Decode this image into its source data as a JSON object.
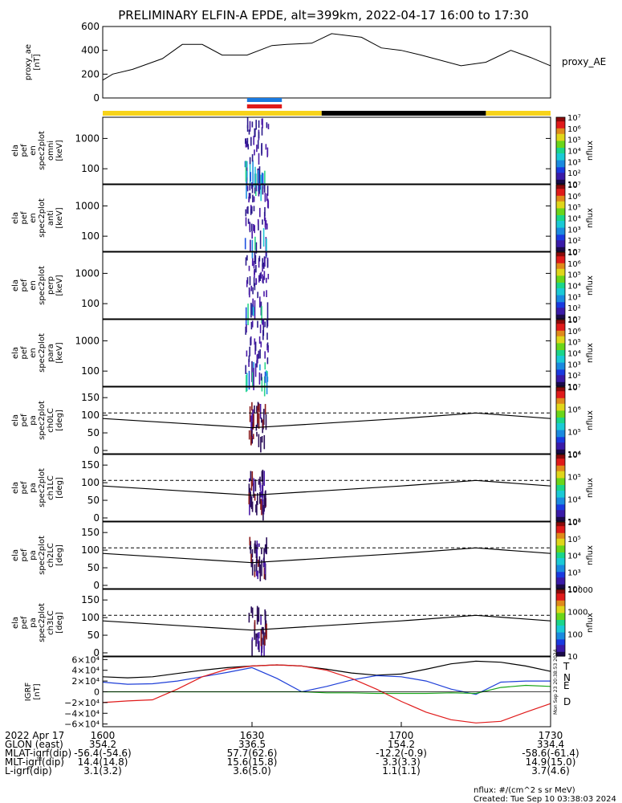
{
  "title": "PRELIMINARY ELFIN-A EPDE, alt=399km, 2022-04-17 16:00 to 17:30",
  "colors": {
    "frame": "#000000",
    "dashed": "#000000",
    "T": "#000000",
    "N": "#1f3fd8",
    "E": "#1aa51a",
    "D": "#e01a1a",
    "bar_yellow": "#f7d31a",
    "bar_black": "#000000",
    "marker_blue": "#1a7ae0",
    "marker_red": "#e01a1a"
  },
  "status_bar": {
    "segments": [
      {
        "from": "16:00",
        "to": "16:44",
        "color": "yellow"
      },
      {
        "from": "16:44",
        "to": "17:17",
        "color": "black"
      },
      {
        "from": "17:17",
        "to": "17:30",
        "color": "yellow"
      }
    ]
  },
  "markers": [
    {
      "from": "16:29",
      "to": "16:36",
      "color": "blue"
    },
    {
      "from": "16:29",
      "to": "16:36",
      "color": "red"
    }
  ],
  "footer": {
    "rows": [
      {
        "label": "2022 Apr 17",
        "values": [
          "1600",
          "1630",
          "1700",
          "1730"
        ]
      },
      {
        "label": "GLON (east)",
        "values": [
          "354.2",
          "336.5",
          "154.2",
          "334.4"
        ]
      },
      {
        "label": "MLAT-igrf(dip)",
        "values": [
          "-56.4(-54.6)",
          "57.7(62.6)",
          "-12.2(-0.9)",
          "-58.6(-61.4)"
        ]
      },
      {
        "label": "MLT-igrf(dip)",
        "values": [
          "14.4(14.8)",
          "15.6(15.8)",
          "3.3(3.3)",
          "14.9(15.0)"
        ]
      },
      {
        "label": "L-igrf(dip)",
        "values": [
          "3.1(3.2)",
          "3.6(5.0)",
          "1.1(1.1)",
          "3.7(4.6)"
        ]
      }
    ],
    "units_note": "nflux: #/(cm^2 s sr MeV)",
    "created": "Created: Tue Sep 10 03:38:03 2024",
    "side_stamp": "Mon Sep 23 20:38:53 2024"
  },
  "chart_data": [
    {
      "type": "line",
      "panel": "proxy_ae",
      "ylabel": [
        "proxy_ae",
        "[nT]"
      ],
      "ylim": [
        0,
        600
      ],
      "yticks": [
        "600",
        "400",
        "200",
        "0"
      ],
      "legend": "proxy_AE",
      "x_minutes": [
        0,
        2,
        6,
        12,
        16,
        20,
        24,
        29,
        34,
        37,
        42,
        46,
        52,
        56,
        60,
        64,
        72,
        77,
        82,
        86,
        90
      ],
      "values": [
        150,
        200,
        240,
        330,
        450,
        450,
        360,
        360,
        440,
        450,
        460,
        540,
        510,
        420,
        400,
        360,
        270,
        300,
        400,
        340,
        270
      ]
    },
    {
      "type": "heatmap",
      "panel": "omni",
      "ylabel": [
        "ela",
        "pef",
        "en",
        "spec2plot",
        "omni",
        "[keV]"
      ],
      "ylog": true,
      "yticks": [
        "1000",
        "100"
      ],
      "colorbar": {
        "label": "nflux",
        "ticks": [
          "10",
          "10²",
          "10³",
          "10⁴",
          "10⁵",
          "10⁶",
          "10⁷"
        ]
      }
    },
    {
      "type": "heatmap",
      "panel": "anti",
      "ylabel": [
        "ela",
        "pef",
        "en",
        "spec2plot",
        "anti",
        "[keV]"
      ],
      "ylog": true,
      "yticks": [
        "1000",
        "100"
      ],
      "colorbar": {
        "label": "nflux",
        "ticks": [
          "10",
          "10²",
          "10³",
          "10⁴",
          "10⁵",
          "10⁶",
          "10⁷"
        ]
      }
    },
    {
      "type": "heatmap",
      "panel": "perp",
      "ylabel": [
        "ela",
        "pef",
        "en",
        "spec2plot",
        "perp",
        "[keV]"
      ],
      "ylog": true,
      "yticks": [
        "1000",
        "100"
      ],
      "colorbar": {
        "label": "nflux",
        "ticks": [
          "10",
          "10²",
          "10³",
          "10⁴",
          "10⁵",
          "10⁶",
          "10⁷"
        ]
      }
    },
    {
      "type": "heatmap",
      "panel": "para",
      "ylabel": [
        "ela",
        "pef",
        "en",
        "spec2plot",
        "para",
        "[keV]"
      ],
      "ylog": true,
      "yticks": [
        "1000",
        "100"
      ],
      "colorbar": {
        "label": "nflux",
        "ticks": [
          "10",
          "10²",
          "10³",
          "10⁴",
          "10⁵",
          "10⁶",
          "10⁷"
        ]
      }
    },
    {
      "type": "heatmap",
      "panel": "ch0LC",
      "ylabel": [
        "ela",
        "pef",
        "pa",
        "spec2plot",
        "ch0LC",
        "[deg]"
      ],
      "ylim": [
        0,
        180
      ],
      "yticks": [
        "150",
        "100",
        "50",
        "0"
      ],
      "loss_cone_solid": [
        95,
        70,
        95,
        110,
        95
      ],
      "loss_cone_dashed": 110,
      "colorbar": {
        "label": "nflux",
        "ticks": [
          "10⁴",
          "10⁵",
          "10⁶",
          "10⁷"
        ]
      }
    },
    {
      "type": "heatmap",
      "panel": "ch1LC",
      "ylabel": [
        "ela",
        "pef",
        "pa",
        "spec2plot",
        "ch1LC",
        "[deg]"
      ],
      "ylim": [
        0,
        180
      ],
      "yticks": [
        "150",
        "100",
        "50",
        "0"
      ],
      "loss_cone_solid": [
        95,
        70,
        95,
        110,
        95
      ],
      "loss_cone_dashed": 110,
      "colorbar": {
        "label": "nflux",
        "ticks": [
          "10³",
          "10⁴",
          "10⁵",
          "10⁶"
        ]
      }
    },
    {
      "type": "heatmap",
      "panel": "ch2LC",
      "ylabel": [
        "ela",
        "pef",
        "pa",
        "spec2plot",
        "ch2LC",
        "[deg]"
      ],
      "ylim": [
        0,
        180
      ],
      "yticks": [
        "150",
        "100",
        "50",
        "0"
      ],
      "loss_cone_solid": [
        95,
        70,
        95,
        110,
        95
      ],
      "loss_cone_dashed": 110,
      "colorbar": {
        "label": "nflux",
        "ticks": [
          "10²",
          "10³",
          "10⁴",
          "10⁵",
          "10⁶"
        ]
      }
    },
    {
      "type": "heatmap",
      "panel": "ch3LC",
      "ylabel": [
        "ela",
        "pef",
        "pa",
        "spec2plot",
        "ch3LC",
        "[deg]"
      ],
      "ylim": [
        0,
        180
      ],
      "yticks": [
        "150",
        "100",
        "50",
        "0"
      ],
      "loss_cone_solid": [
        95,
        70,
        95,
        110,
        95
      ],
      "loss_cone_dashed": 110,
      "colorbar": {
        "label": "nflux",
        "ticks": [
          "10",
          "100",
          "1000",
          "10000"
        ]
      }
    },
    {
      "type": "line",
      "panel": "IGRF",
      "ylabel": [
        "IGRF",
        "[nT]"
      ],
      "ylim": [
        -65000,
        65000
      ],
      "yticks": [
        "6×10⁴",
        "4×10⁴",
        "2×10⁴",
        "0",
        "−2×10⁴",
        "−4×10⁴",
        "−6×10⁴"
      ],
      "x_minutes": [
        0,
        5,
        10,
        15,
        20,
        25,
        30,
        35,
        40,
        45,
        50,
        55,
        60,
        65,
        70,
        75,
        80,
        85,
        90
      ],
      "series": [
        {
          "name": "T",
          "values": [
            28000,
            26000,
            28000,
            34000,
            40000,
            45000,
            48000,
            50000,
            48000,
            42000,
            35000,
            31000,
            33000,
            42000,
            52000,
            57000,
            55000,
            48000,
            38000
          ]
        },
        {
          "name": "N",
          "values": [
            18000,
            14000,
            15000,
            20000,
            28000,
            36000,
            45000,
            25000,
            0,
            10000,
            22000,
            30000,
            28000,
            20000,
            5000,
            -5000,
            18000,
            20000,
            20000
          ]
        },
        {
          "name": "E",
          "values": [
            0,
            0,
            0,
            0,
            0,
            0,
            0,
            0,
            0,
            -2000,
            -2000,
            -3000,
            -3000,
            -3000,
            -2000,
            -3000,
            8000,
            12000,
            10000
          ]
        },
        {
          "name": "D",
          "values": [
            -20000,
            -17000,
            -15000,
            5000,
            28000,
            42000,
            48000,
            50000,
            48000,
            40000,
            25000,
            5000,
            -18000,
            -38000,
            -52000,
            -58000,
            -55000,
            -38000,
            -22000
          ]
        }
      ]
    }
  ]
}
